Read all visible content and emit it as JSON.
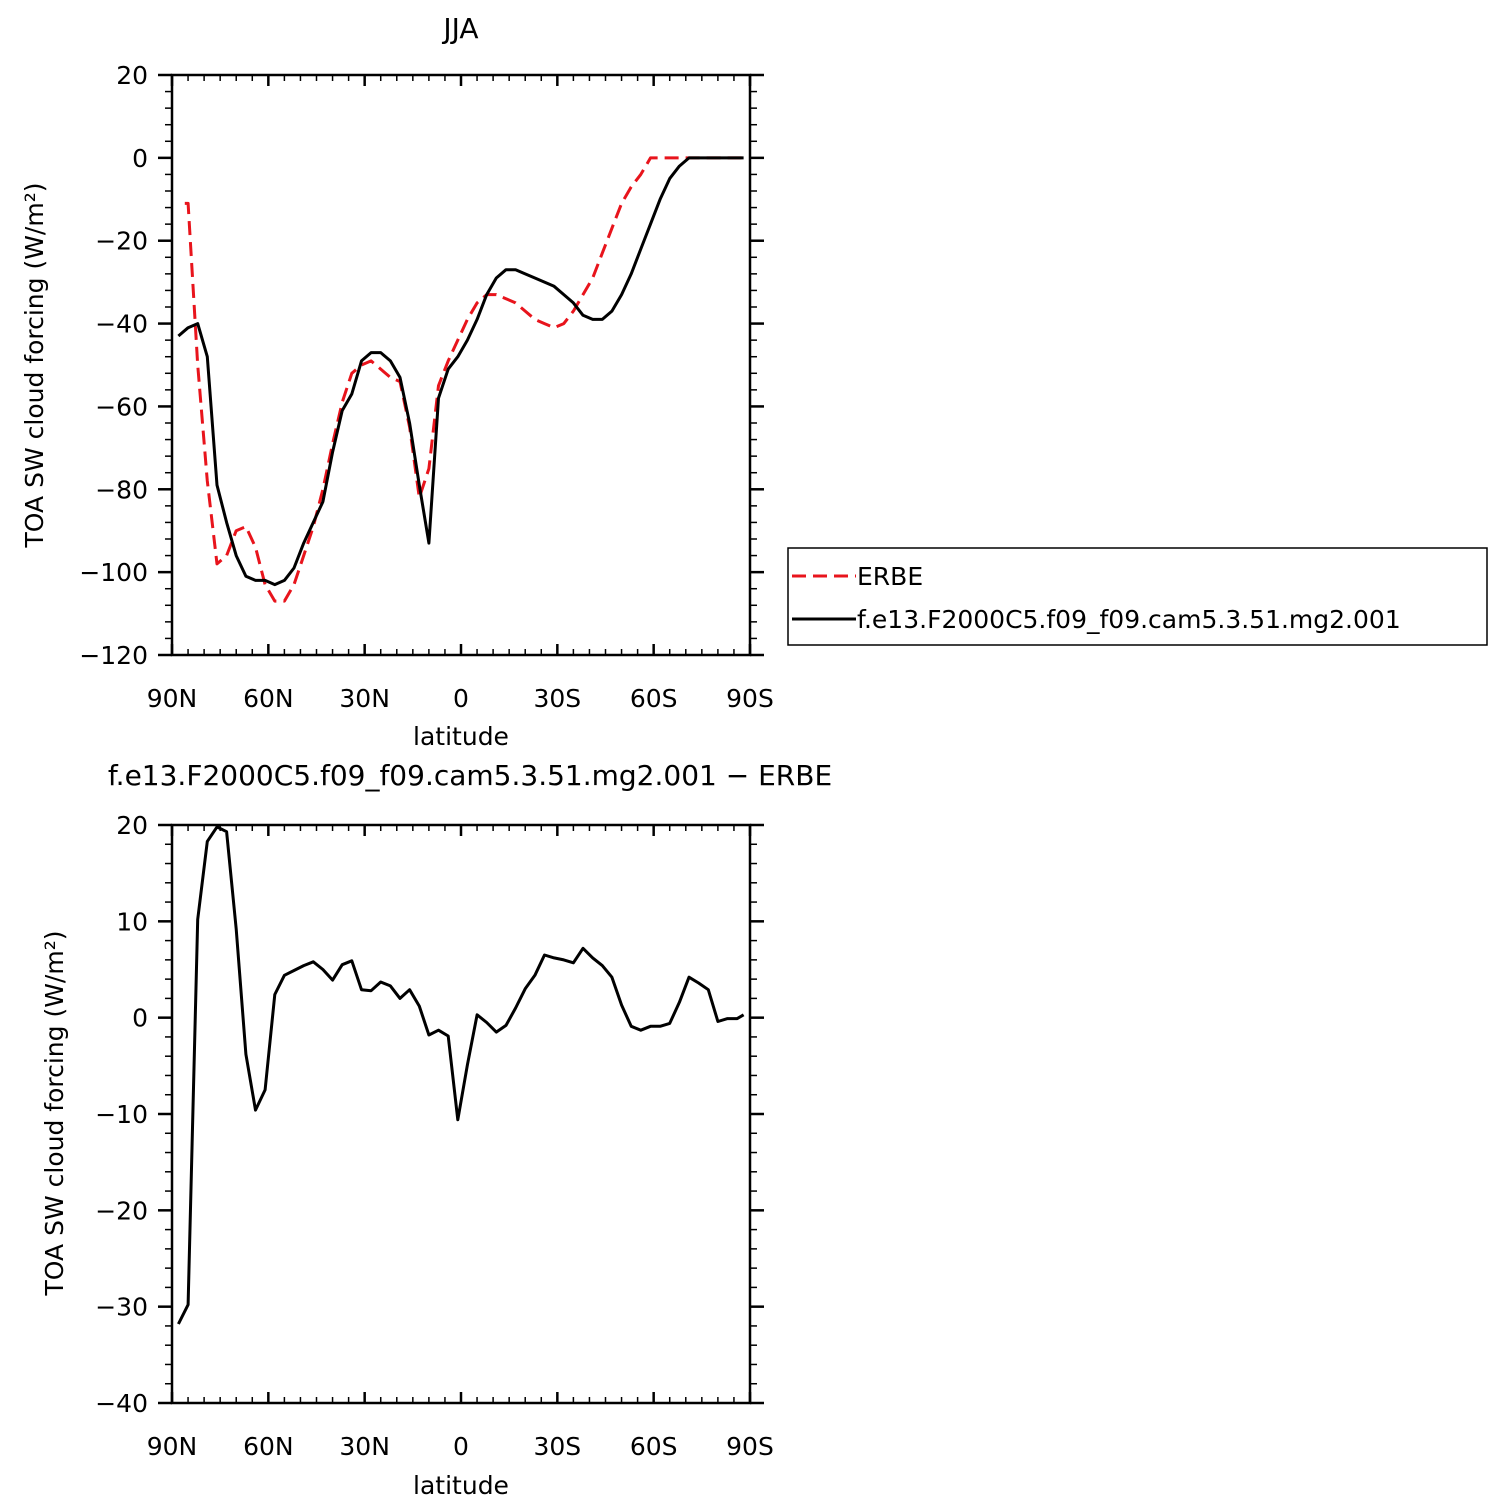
{
  "chart_data": [
    {
      "type": "line",
      "title": "JJA",
      "xlabel": "latitude",
      "ylabel": "TOA SW cloud forcing (W/m²)",
      "xlim": [
        90,
        -90
      ],
      "ylim": [
        -120,
        20
      ],
      "x_ticks": [
        90,
        60,
        30,
        0,
        -30,
        -60,
        -90
      ],
      "x_tick_labels": [
        "90N",
        "60N",
        "30N",
        "0",
        "30S",
        "60S",
        "90S"
      ],
      "y_ticks": [
        20,
        0,
        -20,
        -40,
        -60,
        -80,
        -100,
        -120
      ],
      "y_tick_labels": [
        "20",
        "0",
        "−20",
        "−40",
        "−60",
        "−80",
        "−100",
        "−120"
      ],
      "legend": "right",
      "series": [
        {
          "name": "ERBE",
          "color": "#e8141c",
          "style": "dashed",
          "x": [
            86,
            85,
            82,
            79,
            76,
            73,
            70,
            67,
            64,
            61,
            58,
            55,
            52,
            49,
            46,
            43,
            40,
            37,
            34,
            31,
            28,
            25,
            22,
            19,
            16,
            13,
            10,
            7,
            4,
            1,
            -2,
            -5,
            -8,
            -11,
            -14,
            -17,
            -20,
            -23,
            -26,
            -29,
            -32,
            -35,
            -38,
            -41,
            -44,
            -47,
            -50,
            -53,
            -56,
            -59,
            -62,
            -65,
            -68,
            -71,
            -74,
            -77,
            -80,
            -83,
            -86,
            -88
          ],
          "y": [
            -11,
            -11,
            -50,
            -78,
            -98,
            -96,
            -90,
            -89,
            -94,
            -103,
            -107,
            -107,
            -103,
            -96,
            -89,
            -80,
            -69,
            -59,
            -52,
            -50,
            -49,
            -51,
            -53,
            -54,
            -65,
            -82,
            -75,
            -55,
            -49,
            -44,
            -39,
            -35,
            -33,
            -33,
            -34,
            -35,
            -37,
            -39,
            -40,
            -41,
            -40,
            -37,
            -33,
            -29,
            -23,
            -17,
            -11,
            -7,
            -4,
            0,
            0,
            0,
            0,
            0,
            0,
            0,
            0,
            0,
            0,
            0
          ]
        },
        {
          "name": "f.e13.F2000C5.f09_f09.cam5.3.51.mg2.001",
          "color": "#000000",
          "style": "solid",
          "x": [
            88,
            85,
            82,
            79,
            76,
            73,
            70,
            67,
            64,
            61,
            58,
            55,
            52,
            49,
            46,
            43,
            40,
            37,
            34,
            31,
            28,
            25,
            22,
            19,
            16,
            13,
            10,
            7,
            4,
            1,
            -2,
            -5,
            -8,
            -11,
            -14,
            -17,
            -20,
            -23,
            -26,
            -29,
            -32,
            -35,
            -38,
            -41,
            -44,
            -47,
            -50,
            -53,
            -56,
            -59,
            -62,
            -65,
            -68,
            -71,
            -74,
            -77,
            -80,
            -83,
            -86,
            -88
          ],
          "y": [
            -43,
            -41,
            -40,
            -48,
            -79,
            -88,
            -96,
            -101,
            -102,
            -102,
            -103,
            -102,
            -99,
            -93,
            -88,
            -83,
            -71,
            -61,
            -57,
            -49,
            -47,
            -47,
            -49,
            -53,
            -64,
            -79,
            -93,
            -58,
            -51,
            -48,
            -44,
            -39,
            -33,
            -29,
            -27,
            -27,
            -28,
            -29,
            -30,
            -31,
            -33,
            -35,
            -38,
            -39,
            -39,
            -37,
            -33,
            -28,
            -22,
            -16,
            -10,
            -5,
            -2,
            0,
            0,
            0,
            0,
            0,
            0,
            0
          ]
        }
      ]
    },
    {
      "type": "line",
      "title": "f.e13.F2000C5.f09_f09.cam5.3.51.mg2.001 − ERBE",
      "xlabel": "latitude",
      "ylabel": "TOA SW cloud forcing (W/m²)",
      "xlim": [
        90,
        -90
      ],
      "ylim": [
        -40,
        20
      ],
      "x_ticks": [
        90,
        60,
        30,
        0,
        -30,
        -60,
        -90
      ],
      "x_tick_labels": [
        "90N",
        "60N",
        "30N",
        "0",
        "30S",
        "60S",
        "90S"
      ],
      "y_ticks": [
        20,
        10,
        0,
        -10,
        -20,
        -30,
        -40
      ],
      "y_tick_labels": [
        "20",
        "10",
        "0",
        "−10",
        "−20",
        "−30",
        "−40"
      ],
      "series": [
        {
          "color": "#000000",
          "style": "solid",
          "x": [
            88,
            85,
            82,
            79,
            76,
            73,
            70,
            67,
            64,
            61,
            58,
            55,
            52,
            49,
            46,
            43,
            40,
            37,
            34,
            31,
            28,
            25,
            22,
            19,
            16,
            13,
            10,
            7,
            4,
            1,
            -2,
            -5,
            -8,
            -11,
            -14,
            -17,
            -20,
            -23,
            -26,
            -29,
            -32,
            -35,
            -38,
            -41,
            -44,
            -47,
            -50,
            -53,
            -56,
            -59,
            -62,
            -65,
            -68,
            -71,
            -74,
            -77,
            -80,
            -83,
            -86,
            -88
          ],
          "y": [
            -31.8,
            -29.8,
            10.2,
            18.3,
            19.8,
            19.3,
            9.2,
            -3.8,
            -9.6,
            -7.5,
            2.4,
            4.4,
            4.9,
            5.4,
            5.8,
            5.0,
            3.9,
            5.5,
            5.9,
            2.9,
            2.8,
            3.7,
            3.3,
            2.0,
            2.9,
            1.2,
            -1.8,
            -1.3,
            -1.9,
            -10.6,
            -4.9,
            0.3,
            -0.5,
            -1.5,
            -0.8,
            1.0,
            3.0,
            4.4,
            6.5,
            6.2,
            6.0,
            5.7,
            7.2,
            6.2,
            5.4,
            4.2,
            1.3,
            -0.9,
            -1.3,
            -0.9,
            -0.9,
            -0.6,
            1.6,
            4.2,
            3.6,
            2.9,
            -0.4,
            -0.1,
            -0.1,
            0.3
          ]
        }
      ]
    }
  ]
}
